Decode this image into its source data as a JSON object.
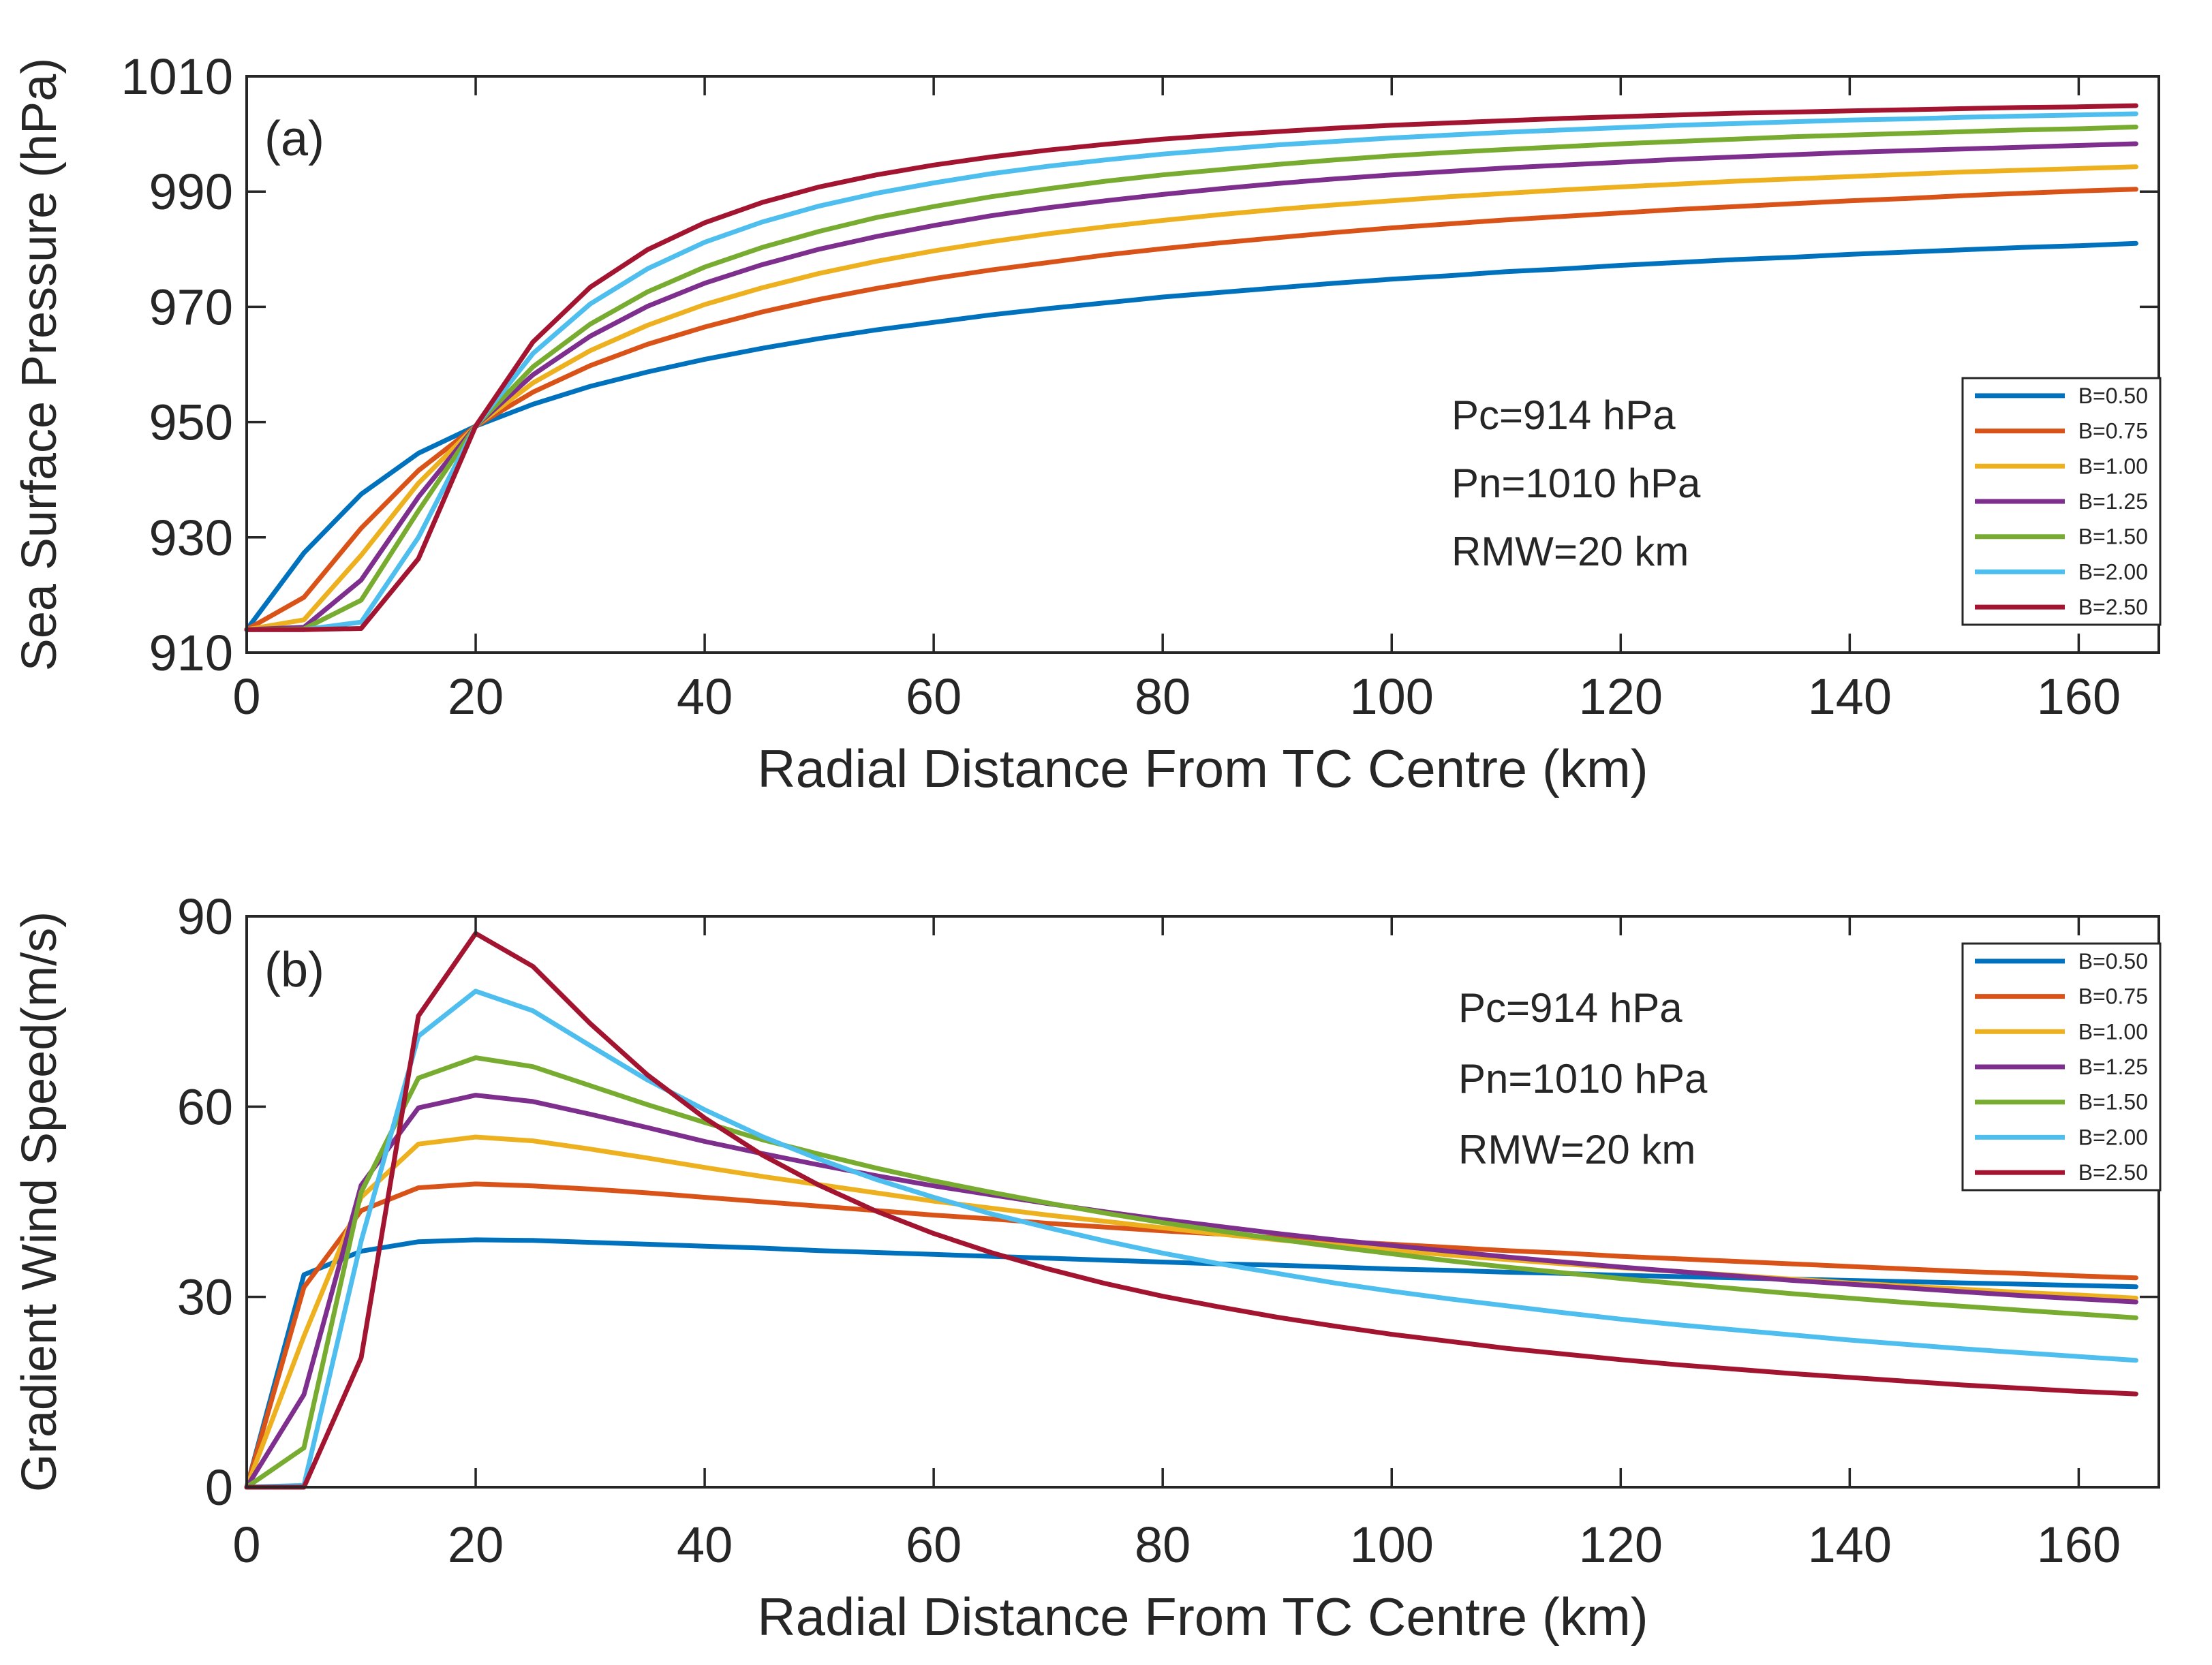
{
  "chart_data": [
    {
      "type": "line",
      "panel_label": "(a)",
      "xlabel": "Radial Distance From TC Centre (km)",
      "ylabel": "Sea Surface Pressure (hPa)",
      "xlim": [
        0,
        167
      ],
      "ylim": [
        910,
        1010
      ],
      "xticks": [
        0,
        20,
        40,
        60,
        80,
        100,
        120,
        140,
        160
      ],
      "yticks": [
        910,
        930,
        950,
        970,
        990,
        1010
      ],
      "annotations": [
        "Pc=914 hPa",
        "Pn=1010 hPa",
        "RMW=20 km"
      ],
      "legend_position": "bottom-right",
      "x": [
        0,
        5,
        10,
        15,
        20,
        25,
        30,
        35,
        40,
        45,
        50,
        55,
        60,
        65,
        70,
        75,
        80,
        85,
        90,
        95,
        100,
        105,
        110,
        115,
        120,
        125,
        130,
        135,
        140,
        145,
        150,
        155,
        160,
        165
      ],
      "series": [
        {
          "name": "B=0.50",
          "color": "#0072BD",
          "values": [
            914.0,
            927.3,
            937.5,
            944.6,
            949.3,
            953.1,
            956.2,
            958.7,
            960.9,
            962.8,
            964.5,
            966.0,
            967.3,
            968.6,
            969.7,
            970.7,
            971.7,
            972.5,
            973.3,
            974.1,
            974.8,
            975.4,
            976.1,
            976.6,
            977.2,
            977.7,
            978.2,
            978.6,
            979.1,
            979.5,
            979.9,
            980.3,
            980.6,
            981.0
          ]
        },
        {
          "name": "B=0.75",
          "color": "#D95319",
          "values": [
            914.0,
            919.6,
            931.6,
            941.6,
            949.3,
            955.2,
            959.8,
            963.5,
            966.5,
            969.1,
            971.3,
            973.2,
            974.9,
            976.4,
            977.7,
            979.0,
            980.1,
            981.1,
            982.0,
            982.9,
            983.7,
            984.4,
            985.1,
            985.7,
            986.3,
            986.9,
            987.4,
            987.9,
            988.4,
            988.8,
            989.3,
            989.7,
            990.1,
            990.4
          ]
        },
        {
          "name": "B=1.00",
          "color": "#EDB120",
          "values": [
            914.0,
            915.7,
            926.9,
            939.4,
            949.3,
            956.8,
            962.4,
            966.8,
            970.4,
            973.3,
            975.8,
            977.9,
            979.7,
            981.3,
            982.7,
            983.9,
            985.0,
            986.0,
            986.9,
            987.7,
            988.4,
            989.1,
            989.7,
            990.3,
            990.8,
            991.3,
            991.8,
            992.2,
            992.6,
            993.0,
            993.4,
            993.7,
            994.0,
            994.3
          ]
        },
        {
          "name": "B=1.25",
          "color": "#7E2F8E",
          "values": [
            914.0,
            914.4,
            922.6,
            937.0,
            949.3,
            958.2,
            964.9,
            970.1,
            974.1,
            977.3,
            980.0,
            982.2,
            984.1,
            985.8,
            987.2,
            988.4,
            989.5,
            990.5,
            991.4,
            992.2,
            992.9,
            993.5,
            994.1,
            994.6,
            995.1,
            995.6,
            996.0,
            996.4,
            996.8,
            997.1,
            997.4,
            997.7,
            998.0,
            998.3
          ]
        },
        {
          "name": "B=1.50",
          "color": "#77AC30",
          "values": [
            914.0,
            914.1,
            919.1,
            934.6,
            949.3,
            959.6,
            967.0,
            972.6,
            976.9,
            980.3,
            983.1,
            985.5,
            987.4,
            989.1,
            990.5,
            991.8,
            992.9,
            993.8,
            994.7,
            995.5,
            996.2,
            996.8,
            997.3,
            997.8,
            998.3,
            998.7,
            999.1,
            999.5,
            999.8,
            1000.1,
            1000.4,
            1000.7,
            1000.9,
            1001.2
          ]
        },
        {
          "name": "B=2.00",
          "color": "#4DBEEE",
          "values": [
            914.0,
            914.0,
            915.3,
            930.0,
            949.3,
            961.9,
            970.5,
            976.6,
            981.2,
            984.7,
            987.5,
            989.7,
            991.5,
            993.1,
            994.4,
            995.5,
            996.5,
            997.3,
            998.1,
            998.7,
            999.3,
            999.8,
            1000.3,
            1000.7,
            1001.1,
            1001.5,
            1001.8,
            1002.1,
            1002.4,
            1002.6,
            1002.9,
            1003.1,
            1003.3,
            1003.5
          ]
        },
        {
          "name": "B=2.50",
          "color": "#A2142F",
          "values": [
            914.0,
            914.0,
            914.2,
            926.3,
            949.3,
            963.9,
            973.4,
            979.9,
            984.6,
            988.1,
            990.8,
            992.9,
            994.6,
            996.0,
            997.2,
            998.2,
            999.1,
            999.8,
            1000.4,
            1001.0,
            1001.5,
            1001.9,
            1002.3,
            1002.7,
            1003.0,
            1003.3,
            1003.6,
            1003.8,
            1004.0,
            1004.2,
            1004.4,
            1004.6,
            1004.7,
            1004.9
          ]
        }
      ]
    },
    {
      "type": "line",
      "panel_label": "(b)",
      "xlabel": "Radial Distance From TC Centre (km)",
      "ylabel": "Gradient Wind Speed(m/s)",
      "xlim": [
        0,
        167
      ],
      "ylim": [
        0,
        90
      ],
      "xticks": [
        0,
        20,
        40,
        60,
        80,
        100,
        120,
        140,
        160
      ],
      "yticks": [
        0,
        30,
        60,
        90
      ],
      "annotations": [
        "Pc=914 hPa",
        "Pn=1010 hPa",
        "RMW=20 km"
      ],
      "legend_position": "top-right",
      "x": [
        0,
        5,
        10,
        15,
        20,
        25,
        30,
        35,
        40,
        45,
        50,
        55,
        60,
        65,
        70,
        75,
        80,
        85,
        90,
        95,
        100,
        105,
        110,
        115,
        120,
        125,
        130,
        135,
        140,
        145,
        150,
        155,
        160,
        165
      ],
      "series": [
        {
          "name": "B=0.50",
          "color": "#0072BD",
          "values": [
            0,
            33.5,
            37.2,
            38.7,
            39.0,
            38.9,
            38.6,
            38.3,
            38.0,
            37.7,
            37.3,
            37.0,
            36.7,
            36.4,
            36.1,
            35.8,
            35.5,
            35.2,
            35.0,
            34.7,
            34.4,
            34.2,
            33.9,
            33.7,
            33.4,
            33.2,
            33.0,
            32.8,
            32.6,
            32.4,
            32.2,
            32.0,
            31.8,
            31.6
          ]
        },
        {
          "name": "B=0.75",
          "color": "#D95319",
          "values": [
            0,
            31.5,
            43.6,
            47.2,
            47.8,
            47.5,
            47.0,
            46.4,
            45.7,
            45.0,
            44.3,
            43.6,
            42.9,
            42.3,
            41.6,
            41.0,
            40.4,
            39.9,
            39.3,
            38.8,
            38.3,
            37.8,
            37.3,
            36.9,
            36.4,
            36.0,
            35.6,
            35.2,
            34.8,
            34.4,
            34.0,
            33.7,
            33.3,
            33.0
          ]
        },
        {
          "name": "B=1.00",
          "color": "#EDB120",
          "values": [
            0,
            23.8,
            45.7,
            54.1,
            55.2,
            54.6,
            53.3,
            51.9,
            50.4,
            49.0,
            47.7,
            46.4,
            45.1,
            44.0,
            42.9,
            41.9,
            40.9,
            39.9,
            39.0,
            38.2,
            37.4,
            36.6,
            35.9,
            35.2,
            34.6,
            34.0,
            33.4,
            32.8,
            32.2,
            31.7,
            31.2,
            30.7,
            30.3,
            29.8
          ]
        },
        {
          "name": "B=1.25",
          "color": "#7E2F8E",
          "values": [
            0,
            14.6,
            47.6,
            59.8,
            61.8,
            60.8,
            58.8,
            56.7,
            54.5,
            52.6,
            50.8,
            49.1,
            47.5,
            46.1,
            44.7,
            43.4,
            42.2,
            41.1,
            40.0,
            39.0,
            38.1,
            37.2,
            36.3,
            35.5,
            34.7,
            34.0,
            33.3,
            32.6,
            32.0,
            31.4,
            30.8,
            30.2,
            29.7,
            29.2
          ]
        },
        {
          "name": "B=1.50",
          "color": "#77AC30",
          "values": [
            0,
            6.2,
            46.5,
            64.5,
            67.7,
            66.3,
            63.3,
            60.3,
            57.5,
            54.8,
            52.5,
            50.3,
            48.3,
            46.5,
            44.8,
            43.2,
            41.7,
            40.4,
            39.1,
            37.9,
            36.8,
            35.7,
            34.7,
            33.8,
            32.9,
            32.1,
            31.3,
            30.5,
            29.8,
            29.1,
            28.5,
            27.9,
            27.3,
            26.7
          ]
        },
        {
          "name": "B=2.00",
          "color": "#4DBEEE",
          "values": [
            0,
            0.3,
            38.8,
            71.1,
            78.2,
            75.1,
            69.6,
            64.2,
            59.5,
            55.3,
            51.7,
            48.5,
            45.7,
            43.1,
            40.9,
            38.8,
            36.9,
            35.2,
            33.7,
            32.2,
            30.9,
            29.7,
            28.6,
            27.5,
            26.5,
            25.6,
            24.8,
            24.0,
            23.2,
            22.5,
            21.8,
            21.2,
            20.6,
            20.0
          ]
        },
        {
          "name": "B=2.50",
          "color": "#A2142F",
          "values": [
            0,
            0,
            20.4,
            74.3,
            87.3,
            82.1,
            73.1,
            65.0,
            58.2,
            52.4,
            47.6,
            43.5,
            40.0,
            37.0,
            34.4,
            32.1,
            30.1,
            28.4,
            26.8,
            25.4,
            24.1,
            23.0,
            21.9,
            21.0,
            20.1,
            19.3,
            18.6,
            17.9,
            17.3,
            16.7,
            16.1,
            15.6,
            15.1,
            14.7
          ]
        }
      ]
    }
  ]
}
